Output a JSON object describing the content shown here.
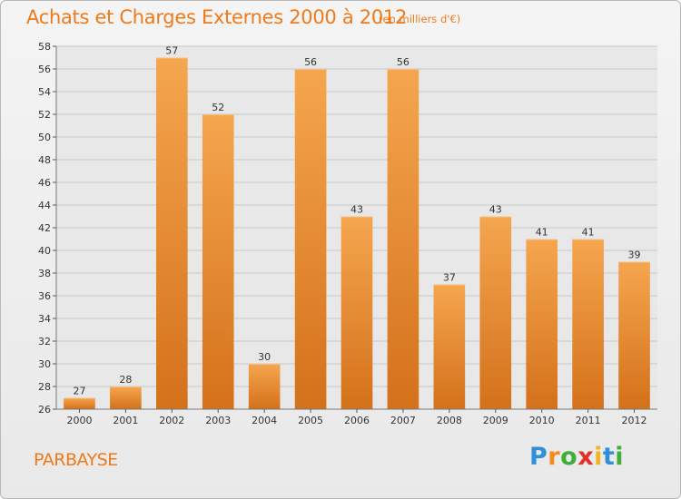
{
  "header": {
    "title": "Achats et Charges Externes 2000 à 2012",
    "subtitle": "(en milliers d'€)"
  },
  "footer": {
    "commune": "PARBAYSE",
    "logo": [
      "P",
      "r",
      "o",
      "x",
      "i",
      "t",
      "i"
    ],
    "logo_colors": [
      "#2f8fd8",
      "#f28a1e",
      "#3fae3b",
      "#e0322b",
      "#f2b51e",
      "#2f8fd8",
      "#3fae3b"
    ]
  },
  "chart_data": {
    "type": "bar",
    "title": "Achats et Charges Externes 2000 à 2012",
    "subtitle": "(en milliers d'€)",
    "categories": [
      "2000",
      "2001",
      "2002",
      "2003",
      "2004",
      "2005",
      "2006",
      "2007",
      "2008",
      "2009",
      "2010",
      "2011",
      "2012"
    ],
    "values": [
      27,
      28,
      57,
      52,
      30,
      56,
      43,
      56,
      37,
      43,
      41,
      41,
      39
    ],
    "value_labels": [
      "27",
      "28",
      "57",
      "52",
      "30",
      "56",
      "43",
      "56",
      "37",
      "43",
      "41",
      "41",
      "39"
    ],
    "ylim": [
      26,
      58
    ],
    "yticks": [
      26,
      28,
      30,
      32,
      34,
      36,
      38,
      40,
      42,
      44,
      46,
      48,
      50,
      52,
      54,
      56,
      58
    ],
    "ytick_labels": [
      "26",
      "28",
      "30",
      "32",
      "34",
      "36",
      "38",
      "40",
      "42",
      "44",
      "46",
      "48",
      "50",
      "52",
      "54",
      "56",
      "58"
    ],
    "grid": true,
    "xlabel": "",
    "ylabel": "",
    "colors": {
      "bar_light": "#f5a64f",
      "bar_dark": "#d4711a",
      "grid": "#c8c8c8",
      "plot_bg": "#e8e8e8",
      "accent": "#f07a1a"
    }
  }
}
